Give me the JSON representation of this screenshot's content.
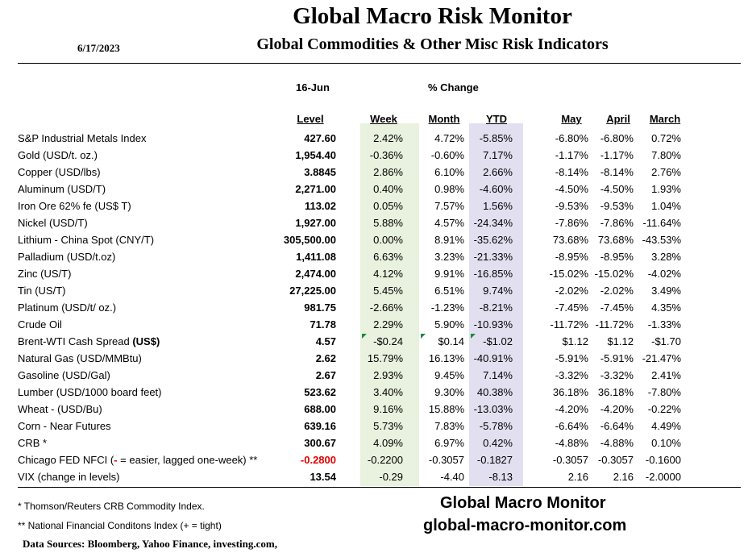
{
  "title": "Global Macro Risk Monitor",
  "date": "6/17/2023",
  "subtitle": "Global Commodities & Other Misc Risk Indicators",
  "group_headers": {
    "level_date": "16-Jun",
    "pct_change": "% Change"
  },
  "columns": {
    "level": "Level",
    "week": "Week",
    "month": "Month",
    "ytd": "YTD",
    "may": "May",
    "april": "April",
    "march": "March"
  },
  "rows": [
    {
      "name": "S&P Industrial Metals Index",
      "level": "427.60",
      "week": "2.42%",
      "month": "4.72%",
      "ytd": "-5.85%",
      "may": "-6.80%",
      "april": "-6.80%",
      "march": "0.72%"
    },
    {
      "name": "Gold (USD/t. oz.)",
      "level": "1,954.40",
      "week": "-0.36%",
      "month": "-0.60%",
      "ytd": "7.17%",
      "may": "-1.17%",
      "april": "-1.17%",
      "march": "7.80%"
    },
    {
      "name": "Copper (USD/lbs)",
      "level": "3.8845",
      "week": "2.86%",
      "month": "6.10%",
      "ytd": "2.66%",
      "may": "-8.14%",
      "april": "-8.14%",
      "march": "2.76%"
    },
    {
      "name": "Aluminum (USD/T)",
      "level": "2,271.00",
      "week": "0.40%",
      "month": "0.98%",
      "ytd": "-4.60%",
      "may": "-4.50%",
      "april": "-4.50%",
      "march": "1.93%"
    },
    {
      "name": "Iron Ore 62% fe (US$ T)",
      "level": "113.02",
      "week": "0.05%",
      "month": "7.57%",
      "ytd": "1.56%",
      "may": "-9.53%",
      "april": "-9.53%",
      "march": "1.04%"
    },
    {
      "name": "Nickel (USD/T)",
      "level": "1,927.00",
      "week": "5.88%",
      "month": "4.57%",
      "ytd": "-24.34%",
      "may": "-7.86%",
      "april": "-7.86%",
      "march": "-11.64%"
    },
    {
      "name": "Lithium - China Spot (CNY/T)",
      "level": "305,500.00",
      "week": "0.00%",
      "month": "8.91%",
      "ytd": "-35.62%",
      "may": "73.68%",
      "april": "73.68%",
      "march": "-43.53%"
    },
    {
      "name": "Palladium (USD/t.oz)",
      "level": "1,411.08",
      "week": "6.63%",
      "month": "3.23%",
      "ytd": "-21.33%",
      "may": "-8.95%",
      "april": "-8.95%",
      "march": "3.28%"
    },
    {
      "name": "Zinc (US/T)",
      "level": "2,474.00",
      "week": "4.12%",
      "month": "9.91%",
      "ytd": "-16.85%",
      "may": "-15.02%",
      "april": "-15.02%",
      "march": "-4.02%"
    },
    {
      "name": "Tin (US/T)",
      "level": "27,225.00",
      "week": "5.45%",
      "month": "6.51%",
      "ytd": "9.74%",
      "may": "-2.02%",
      "april": "-2.02%",
      "march": "3.49%"
    },
    {
      "name": "Platinum (USD/t/ oz.)",
      "level": "981.75",
      "week": "-2.66%",
      "month": "-1.23%",
      "ytd": "-8.21%",
      "may": "-7.45%",
      "april": "-7.45%",
      "march": "4.35%"
    },
    {
      "name": "Crude Oil",
      "level": "71.78",
      "week": "2.29%",
      "month": "5.90%",
      "ytd": "-10.93%",
      "may": "-11.72%",
      "april": "-11.72%",
      "march": "-1.33%"
    },
    {
      "name_prefix": "Brent-WTI Cash Spread ",
      "name_bold": "(US$)",
      "level": "4.57",
      "week": "-$0.24",
      "month": "$0.14",
      "ytd": "-$1.02",
      "may": "$1.12",
      "april": "$1.12",
      "march": "-$1.70"
    },
    {
      "name": "Natural Gas  (USD/MMBtu)",
      "level": "2.62",
      "week": "15.79%",
      "month": "16.13%",
      "ytd": "-40.91%",
      "may": "-5.91%",
      "april": "-5.91%",
      "march": "-21.47%"
    },
    {
      "name": "Gasoline (USD/Gal)",
      "level": "2.67",
      "week": "2.93%",
      "month": "9.45%",
      "ytd": "7.14%",
      "may": "-3.32%",
      "april": "-3.32%",
      "march": "2.41%"
    },
    {
      "name": "Lumber (USD/1000 board feet)",
      "level": "523.62",
      "week": "3.40%",
      "month": "9.30%",
      "ytd": "40.38%",
      "may": "36.18%",
      "april": "36.18%",
      "march": "-7.80%"
    },
    {
      "name": "Wheat - (USD/Bu)",
      "level": "688.00",
      "week": "9.16%",
      "month": "15.88%",
      "ytd": "-13.03%",
      "may": "-4.20%",
      "april": "-4.20%",
      "march": "-0.22%"
    },
    {
      "name": "Corn - Near Futures",
      "level": "639.16",
      "week": "5.73%",
      "month": "7.83%",
      "ytd": "-5.78%",
      "may": "-6.64%",
      "april": "-6.64%",
      "march": "4.49%"
    },
    {
      "name": "CRB *",
      "level": "300.67",
      "week": "4.09%",
      "month": "6.97%",
      "ytd": "0.42%",
      "may": "-4.88%",
      "april": "-4.88%",
      "march": "0.10%"
    },
    {
      "name_prefix": "Chicago FED NFCI (",
      "name_red": "-",
      "name_suffix": " = easier, lagged one-week) **",
      "level": "-0.2800",
      "week": "-0.2200",
      "month": "-0.3057",
      "ytd": "-0.1827",
      "may": "-0.3057",
      "april": "-0.3057",
      "march": "-0.1600"
    },
    {
      "name": "VIX (change in levels)",
      "level": "13.54",
      "week": "-0.29",
      "month": "-4.40",
      "ytd": "-8.13",
      "may": "2.16",
      "april": "2.16",
      "march": "-2.0000"
    }
  ],
  "footnotes": {
    "crb": "*      Thomson/Reuters CRB Commodity Index.",
    "nfci": "** National Financial Conditons Index (+ =  tight)",
    "sources": "Data Sources:  Bloomberg,  Yahoo Finance, investing.com,"
  },
  "brand": {
    "name": "Global Macro Monitor",
    "url": "global-macro-monitor.com"
  },
  "colors": {
    "week_shade": "#e9f1df",
    "ytd_shade": "#e2e0f0",
    "negative_level": "#e00000",
    "comment_flag": "#1a8a3c"
  }
}
